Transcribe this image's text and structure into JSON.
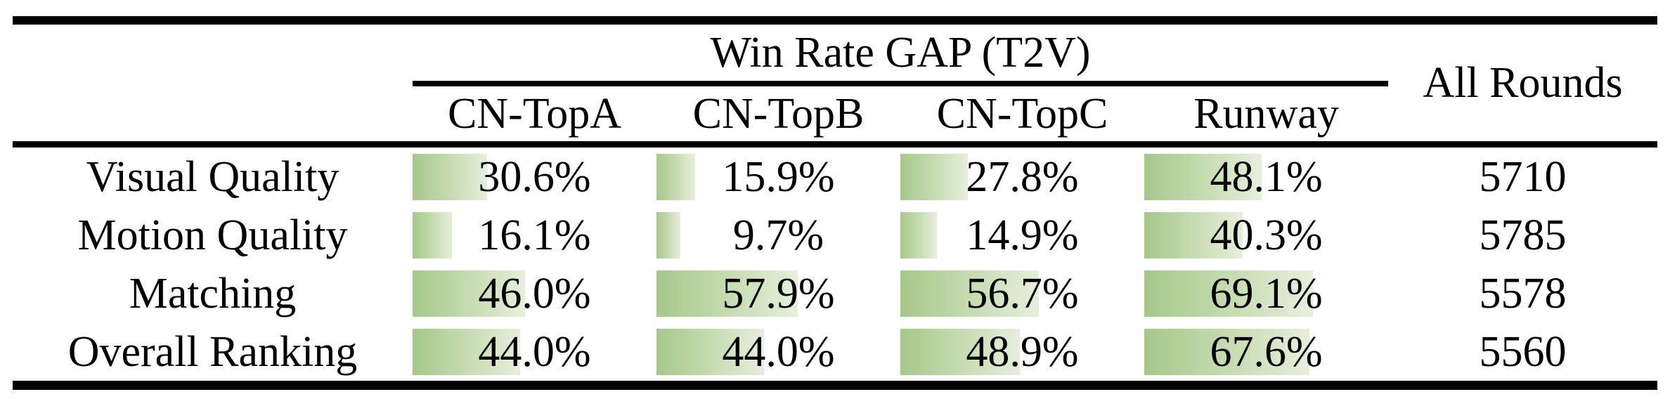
{
  "header": {
    "group": "Win Rate GAP (T2V)",
    "all_rounds": "All Rounds",
    "columns": [
      "CN-TopA",
      "CN-TopB",
      "CN-TopC",
      "Runway"
    ]
  },
  "rows": [
    {
      "label": "Visual Quality",
      "cells": [
        {
          "text": "30.6%",
          "pct": 30.6
        },
        {
          "text": "15.9%",
          "pct": 15.9
        },
        {
          "text": "27.8%",
          "pct": 27.8
        },
        {
          "text": "48.1%",
          "pct": 48.1
        }
      ],
      "all_rounds": "5710"
    },
    {
      "label": "Motion Quality",
      "cells": [
        {
          "text": "16.1%",
          "pct": 16.1
        },
        {
          "text": "9.7%",
          "pct": 9.7
        },
        {
          "text": "14.9%",
          "pct": 14.9
        },
        {
          "text": "40.3%",
          "pct": 40.3
        }
      ],
      "all_rounds": "5785"
    },
    {
      "label": "Matching",
      "cells": [
        {
          "text": "46.0%",
          "pct": 46.0
        },
        {
          "text": "57.9%",
          "pct": 57.9
        },
        {
          "text": "56.7%",
          "pct": 56.7
        },
        {
          "text": "69.1%",
          "pct": 69.1
        }
      ],
      "all_rounds": "5578"
    },
    {
      "label": "Overall Ranking",
      "cells": [
        {
          "text": "44.0%",
          "pct": 44.0
        },
        {
          "text": "44.0%",
          "pct": 44.0
        },
        {
          "text": "48.9%",
          "pct": 48.9
        },
        {
          "text": "67.6%",
          "pct": 67.6
        }
      ],
      "all_rounds": "5560"
    }
  ],
  "colors": {
    "bar_gradient_start": "#a5c88b",
    "bar_gradient_mid": "#c9ddb4",
    "bar_gradient_end": "#e7efdc",
    "rule": "#000000",
    "text": "#000000",
    "background": "#ffffff"
  },
  "chart_data": {
    "type": "table",
    "title": "Win Rate GAP (T2V)",
    "categories": [
      "Visual Quality",
      "Motion Quality",
      "Matching",
      "Overall Ranking"
    ],
    "series": [
      {
        "name": "CN-TopA",
        "values": [
          30.6,
          16.1,
          46.0,
          44.0
        ]
      },
      {
        "name": "CN-TopB",
        "values": [
          15.9,
          9.7,
          57.9,
          44.0
        ]
      },
      {
        "name": "CN-TopC",
        "values": [
          27.8,
          14.9,
          56.7,
          48.9
        ]
      },
      {
        "name": "Runway",
        "values": [
          48.1,
          40.3,
          69.1,
          67.6
        ]
      }
    ],
    "extra_columns": [
      {
        "name": "All Rounds",
        "values": [
          5710,
          5785,
          5578,
          5560
        ]
      }
    ],
    "unit": "%",
    "bar_scale": [
      0,
      100
    ],
    "notes": "In-cell horizontal green gradient bars sized to percentage value"
  }
}
